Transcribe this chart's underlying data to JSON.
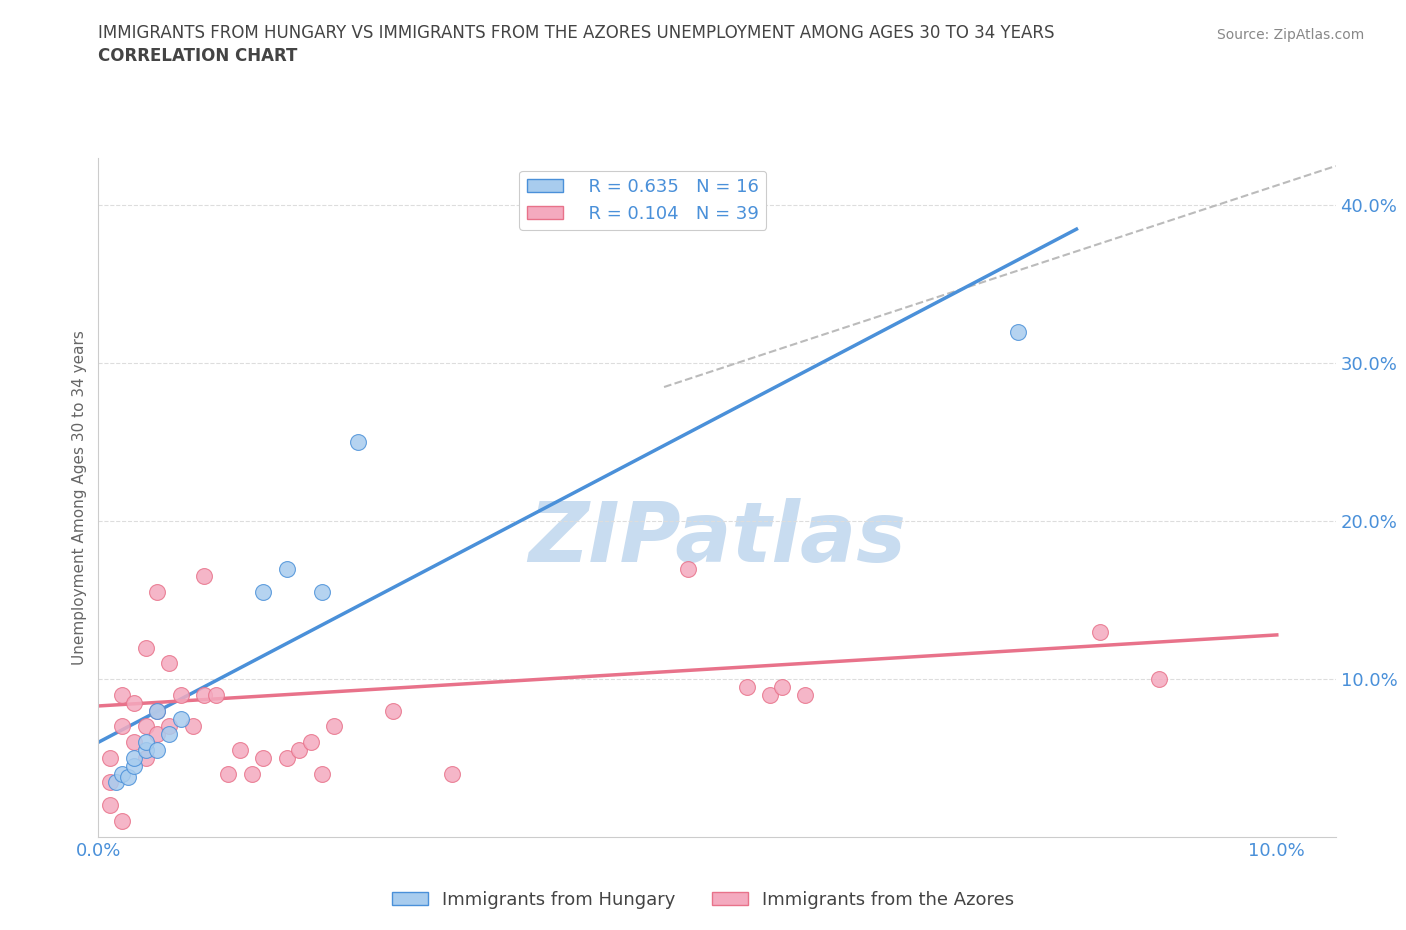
{
  "title_line1": "IMMIGRANTS FROM HUNGARY VS IMMIGRANTS FROM THE AZORES UNEMPLOYMENT AMONG AGES 30 TO 34 YEARS",
  "title_line2": "CORRELATION CHART",
  "source_text": "Source: ZipAtlas.com",
  "ylabel": "Unemployment Among Ages 30 to 34 years",
  "watermark": "ZIPatlas",
  "xlim": [
    0.0,
    0.105
  ],
  "ylim": [
    0.0,
    0.43
  ],
  "yticks": [
    0.1,
    0.2,
    0.3,
    0.4
  ],
  "ytick_labels": [
    "10.0%",
    "20.0%",
    "30.0%",
    "40.0%"
  ],
  "xtick_positions": [
    0.0,
    0.05,
    0.1
  ],
  "xtick_labels": [
    "0.0%",
    "",
    "10.0%"
  ],
  "legend_r1": "R = 0.635   N = 16",
  "legend_r2": "R = 0.104   N = 39",
  "color_hungary": "#A8CCEE",
  "color_azores": "#F4AABF",
  "color_hungary_line": "#4A90D9",
  "color_azores_line": "#E8728A",
  "color_diag_line": "#BBBBBB",
  "hungary_scatter_x": [
    0.0015,
    0.002,
    0.0025,
    0.003,
    0.003,
    0.004,
    0.004,
    0.005,
    0.005,
    0.006,
    0.007,
    0.014,
    0.016,
    0.019,
    0.022,
    0.078
  ],
  "hungary_scatter_y": [
    0.035,
    0.04,
    0.038,
    0.045,
    0.05,
    0.055,
    0.06,
    0.055,
    0.08,
    0.065,
    0.075,
    0.155,
    0.17,
    0.155,
    0.25,
    0.32
  ],
  "azores_scatter_x": [
    0.001,
    0.001,
    0.001,
    0.002,
    0.002,
    0.003,
    0.003,
    0.004,
    0.004,
    0.004,
    0.005,
    0.005,
    0.005,
    0.006,
    0.006,
    0.007,
    0.008,
    0.009,
    0.009,
    0.01,
    0.011,
    0.012,
    0.013,
    0.014,
    0.016,
    0.017,
    0.018,
    0.019,
    0.02,
    0.025,
    0.03,
    0.05,
    0.055,
    0.057,
    0.058,
    0.06,
    0.085,
    0.09,
    0.002
  ],
  "azores_scatter_y": [
    0.02,
    0.035,
    0.05,
    0.07,
    0.09,
    0.06,
    0.085,
    0.05,
    0.07,
    0.12,
    0.065,
    0.08,
    0.155,
    0.07,
    0.11,
    0.09,
    0.07,
    0.09,
    0.165,
    0.09,
    0.04,
    0.055,
    0.04,
    0.05,
    0.05,
    0.055,
    0.06,
    0.04,
    0.07,
    0.08,
    0.04,
    0.17,
    0.095,
    0.09,
    0.095,
    0.09,
    0.13,
    0.1,
    0.01
  ],
  "hungary_line_x": [
    0.0,
    0.083
  ],
  "hungary_line_y": [
    0.06,
    0.385
  ],
  "azores_line_x": [
    0.0,
    0.1
  ],
  "azores_line_y": [
    0.083,
    0.128
  ],
  "diag_line_x": [
    0.048,
    0.105
  ],
  "diag_line_y": [
    0.285,
    0.425
  ],
  "title_color": "#444444",
  "tick_color": "#4A90D9",
  "grid_color": "#DDDDDD",
  "legend_color_r": "#4A90D9",
  "watermark_color": "#C8DCF0"
}
